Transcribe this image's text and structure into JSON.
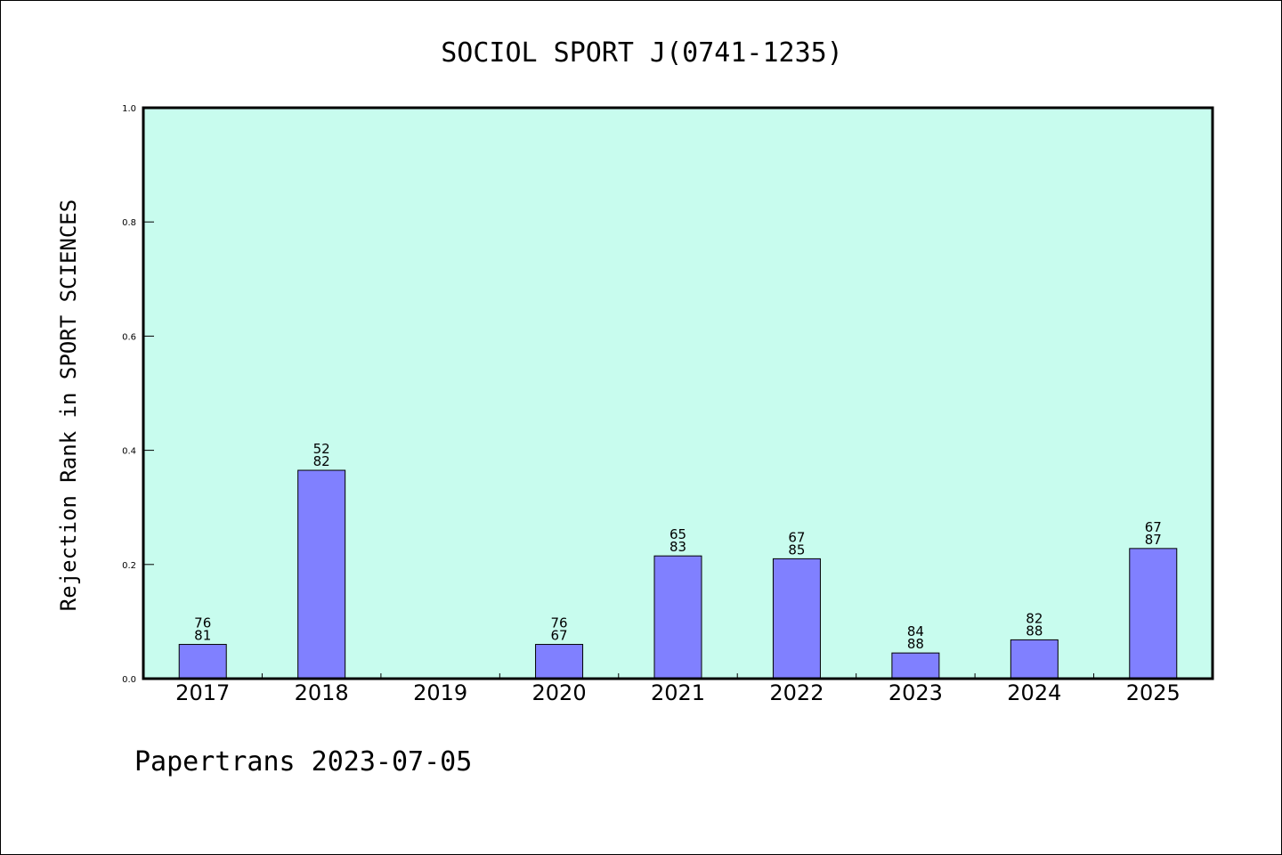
{
  "chart_data": {
    "type": "bar",
    "title": "SOCIOL SPORT J(0741-1235)",
    "ylabel": "Rejection Rank in SPORT SCIENCES",
    "xlabel": "",
    "ylim": [
      0,
      1.0
    ],
    "yticks": [
      "0.0",
      "0.2",
      "0.4",
      "0.6",
      "0.8",
      "1.0"
    ],
    "categories": [
      "2017",
      "2018",
      "2019",
      "2020",
      "2021",
      "2022",
      "2023",
      "2024",
      "2025"
    ],
    "values": [
      0.06,
      0.365,
      null,
      0.06,
      0.215,
      0.21,
      0.045,
      0.068,
      0.228
    ],
    "labels": [
      [
        "76",
        "81"
      ],
      [
        "52",
        "82"
      ],
      null,
      [
        "76",
        "67"
      ],
      [
        "65",
        "83"
      ],
      [
        "67",
        "85"
      ],
      [
        "84",
        "88"
      ],
      [
        "82",
        "88"
      ],
      [
        "67",
        "87"
      ]
    ],
    "grid": false,
    "colors": {
      "plot_background": "#c8fcee",
      "bar_fill": "#8080ff",
      "bar_stroke": "#000000"
    }
  },
  "footer": "Papertrans 2023-07-05"
}
